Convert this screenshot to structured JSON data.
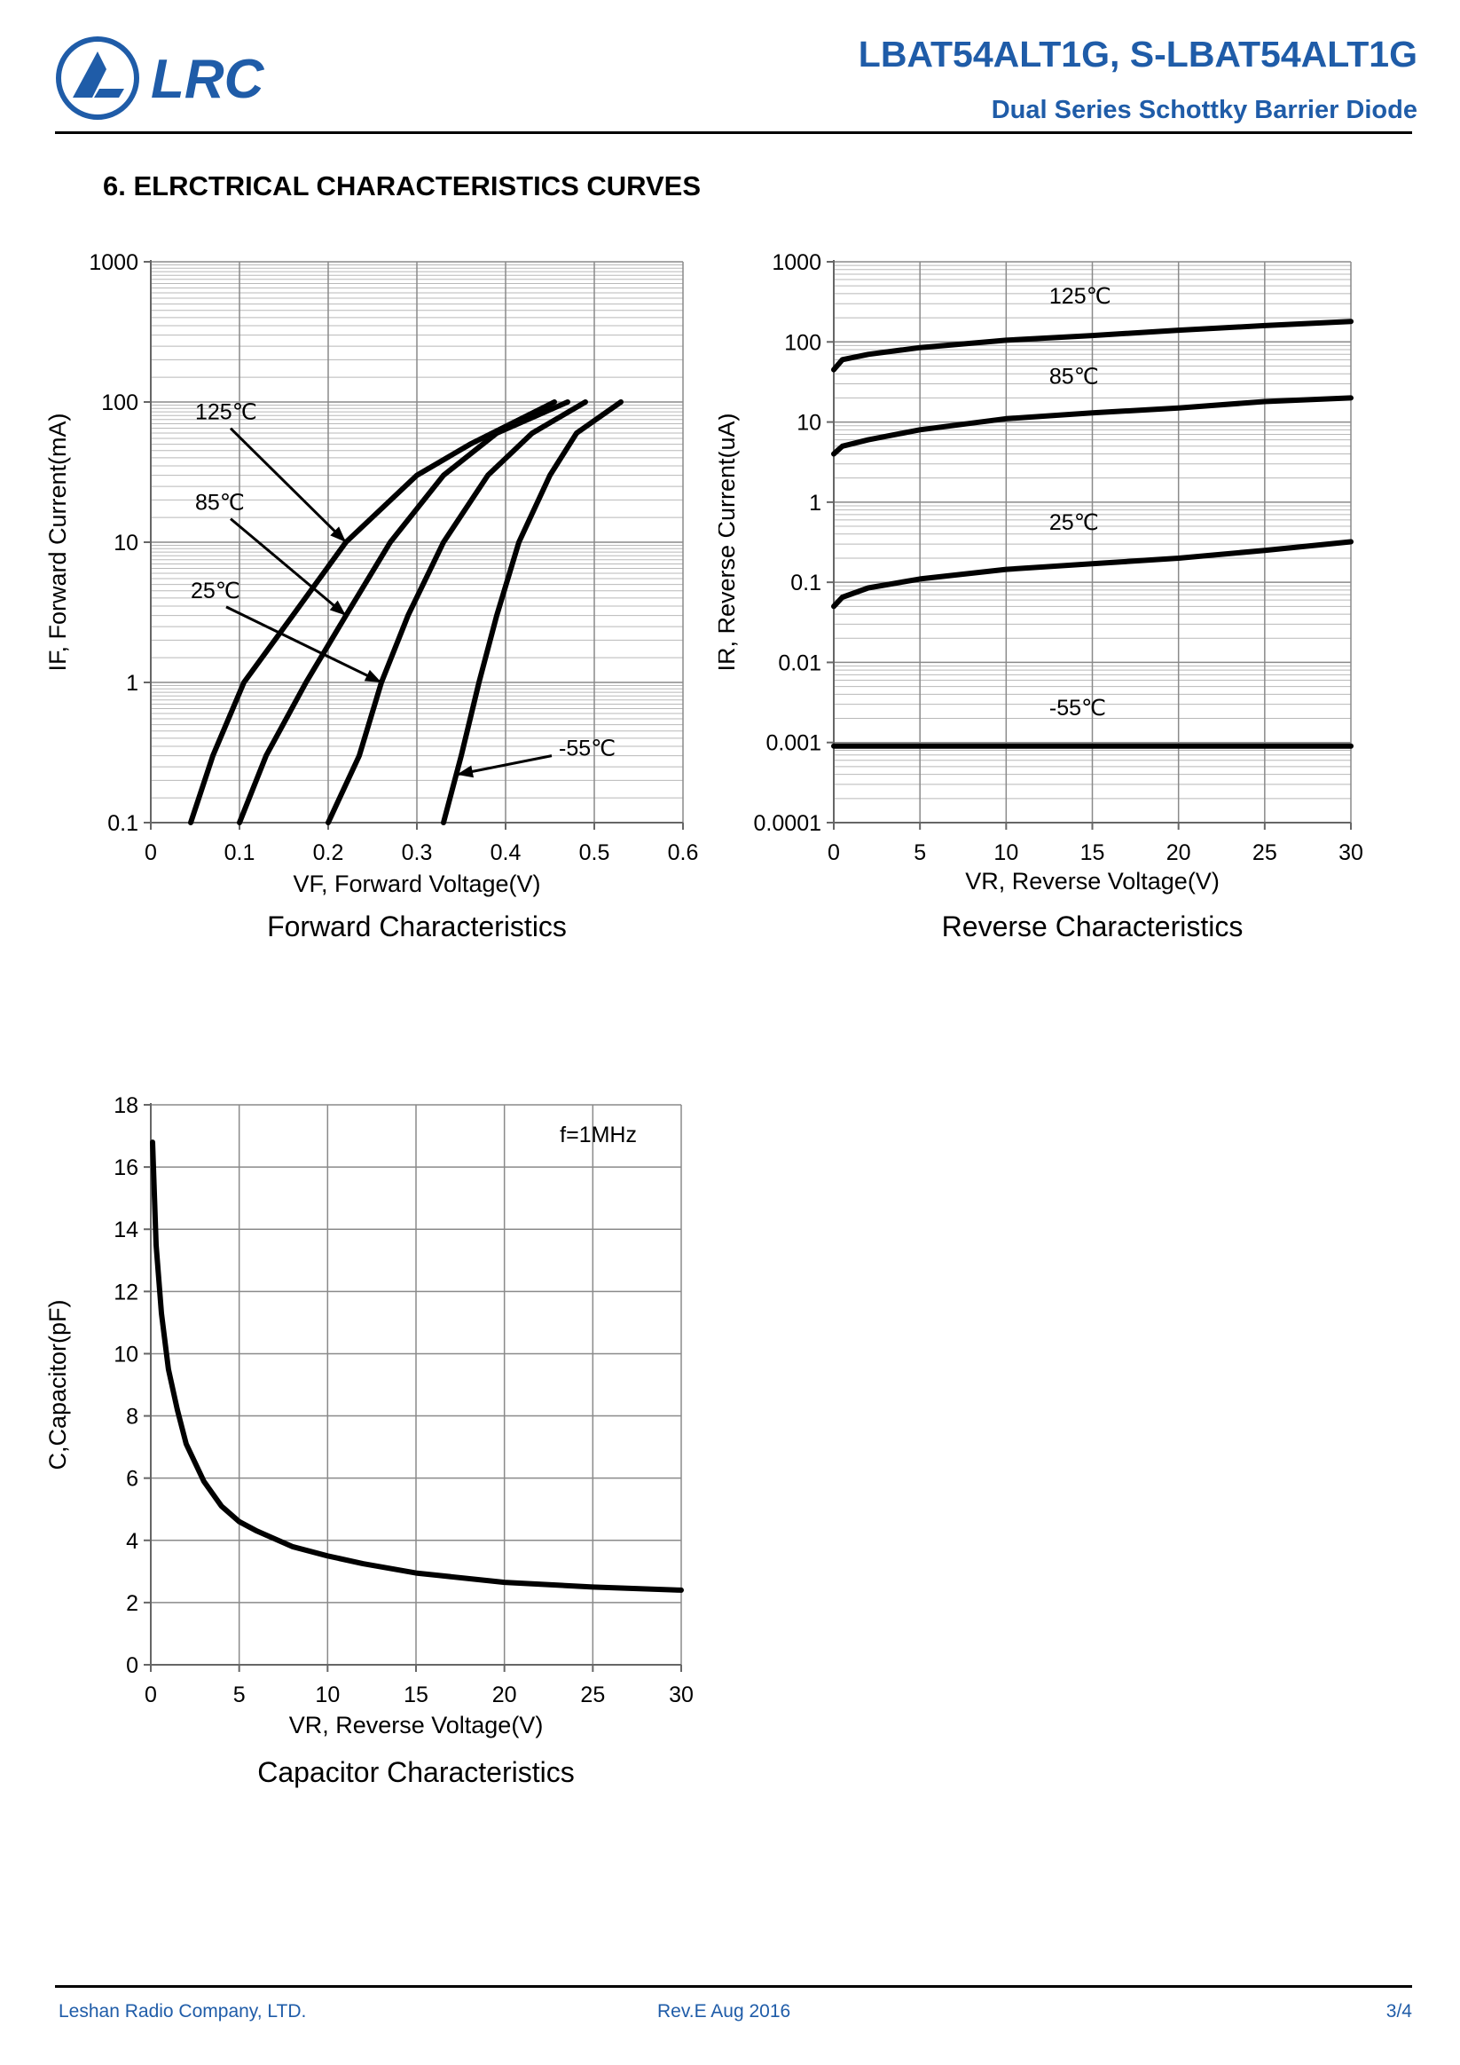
{
  "header": {
    "logo_text": "LRC",
    "title": "LBAT54ALT1G, S-LBAT54ALT1G",
    "subtitle": "Dual Series  Schottky Barrier Diode",
    "brand_color": "#1f5ca8"
  },
  "section": {
    "heading": "6. ELRCTRICAL CHARACTERISTICS CURVES"
  },
  "chart_data": [
    {
      "id": "forward",
      "type": "line",
      "title": "Forward Characteristics",
      "xlabel": "VF, Forward Voltage(V)",
      "ylabel": "IF, Forward Current(mA)",
      "xscale": "linear",
      "yscale": "log",
      "xlim": [
        0,
        0.6
      ],
      "ylim": [
        0.1,
        1000
      ],
      "xticks": [
        0,
        0.1,
        0.2,
        0.3,
        0.4,
        0.5,
        0.6
      ],
      "xtick_labels": [
        "0",
        "0.1",
        "0.2",
        "0.3",
        "0.4",
        "0.5",
        "0.6"
      ],
      "yticks": [
        0.1,
        1,
        10,
        100,
        1000
      ],
      "ytick_labels": [
        "0.1",
        "1",
        "10",
        "100",
        "1000"
      ],
      "grid": true,
      "series": [
        {
          "name": "125℃",
          "points": [
            [
              0.045,
              0.1
            ],
            [
              0.07,
              0.3
            ],
            [
              0.105,
              1
            ],
            [
              0.16,
              3
            ],
            [
              0.22,
              10
            ],
            [
              0.3,
              30
            ],
            [
              0.36,
              50
            ],
            [
              0.455,
              100
            ]
          ]
        },
        {
          "name": "85℃",
          "points": [
            [
              0.1,
              0.1
            ],
            [
              0.13,
              0.3
            ],
            [
              0.175,
              1
            ],
            [
              0.22,
              3
            ],
            [
              0.27,
              10
            ],
            [
              0.33,
              30
            ],
            [
              0.39,
              60
            ],
            [
              0.47,
              100
            ]
          ]
        },
        {
          "name": "25℃",
          "points": [
            [
              0.2,
              0.1
            ],
            [
              0.235,
              0.3
            ],
            [
              0.26,
              1
            ],
            [
              0.29,
              3
            ],
            [
              0.33,
              10
            ],
            [
              0.38,
              30
            ],
            [
              0.43,
              60
            ],
            [
              0.49,
              100
            ]
          ]
        },
        {
          "name": "-55℃",
          "points": [
            [
              0.33,
              0.1
            ],
            [
              0.35,
              0.3
            ],
            [
              0.37,
              1
            ],
            [
              0.39,
              3
            ],
            [
              0.415,
              10
            ],
            [
              0.45,
              30
            ],
            [
              0.48,
              60
            ],
            [
              0.53,
              100
            ]
          ]
        }
      ],
      "annotations": [
        {
          "text": "125℃",
          "label_at": [
            0.05,
            75
          ],
          "arrow_to": [
            0.22,
            10
          ]
        },
        {
          "text": "85℃",
          "label_at": [
            0.05,
            17
          ],
          "arrow_to": [
            0.22,
            3
          ]
        },
        {
          "text": "25℃",
          "label_at": [
            0.045,
            4
          ],
          "arrow_to": [
            0.26,
            1
          ]
        },
        {
          "text": "-55℃",
          "label_at": [
            0.46,
            0.3
          ],
          "arrow_to": [
            0.345,
            0.22
          ]
        }
      ]
    },
    {
      "id": "reverse",
      "type": "line",
      "title": "Reverse Characteristics",
      "xlabel": "VR, Reverse Voltage(V)",
      "ylabel": "IR, Reverse Current(uA)",
      "xscale": "linear",
      "yscale": "log",
      "xlim": [
        0,
        30
      ],
      "ylim": [
        0.0001,
        1000
      ],
      "xticks": [
        0,
        5,
        10,
        15,
        20,
        25,
        30
      ],
      "xtick_labels": [
        "0",
        "5",
        "10",
        "15",
        "20",
        "25",
        "30"
      ],
      "yticks": [
        0.0001,
        0.001,
        0.01,
        0.1,
        1,
        10,
        100,
        1000
      ],
      "ytick_labels": [
        "0.0001",
        "0.001",
        "0.01",
        "0.1",
        "1",
        "10",
        "100",
        "1000"
      ],
      "grid": true,
      "series": [
        {
          "name": "125℃",
          "points": [
            [
              0,
              45
            ],
            [
              0.5,
              60
            ],
            [
              2,
              70
            ],
            [
              5,
              85
            ],
            [
              10,
              105
            ],
            [
              15,
              120
            ],
            [
              20,
              140
            ],
            [
              25,
              160
            ],
            [
              30,
              180
            ]
          ]
        },
        {
          "name": "85℃",
          "points": [
            [
              0,
              4
            ],
            [
              0.5,
              5
            ],
            [
              2,
              6
            ],
            [
              5,
              8
            ],
            [
              10,
              11
            ],
            [
              15,
              13
            ],
            [
              20,
              15
            ],
            [
              25,
              18
            ],
            [
              30,
              20
            ]
          ]
        },
        {
          "name": "25℃",
          "points": [
            [
              0,
              0.05
            ],
            [
              0.5,
              0.065
            ],
            [
              2,
              0.085
            ],
            [
              5,
              0.11
            ],
            [
              10,
              0.145
            ],
            [
              15,
              0.17
            ],
            [
              20,
              0.2
            ],
            [
              25,
              0.25
            ],
            [
              30,
              0.32
            ]
          ]
        },
        {
          "name": "-55℃",
          "points": [
            [
              0,
              0.0009
            ],
            [
              30,
              0.0009
            ]
          ]
        }
      ],
      "annotations": [
        {
          "text": "125℃",
          "label_at": [
            12.5,
            300
          ]
        },
        {
          "text": "85℃",
          "label_at": [
            12.5,
            30
          ]
        },
        {
          "text": "25℃",
          "label_at": [
            12.5,
            0.45
          ]
        },
        {
          "text": "-55℃",
          "label_at": [
            12.5,
            0.0022
          ]
        }
      ]
    },
    {
      "id": "capacitor",
      "type": "line",
      "title": "Capacitor Characteristics",
      "xlabel": "VR, Reverse Voltage(V)",
      "ylabel": "C,Capacitor(pF)",
      "xscale": "linear",
      "yscale": "linear",
      "xlim": [
        0,
        30
      ],
      "ylim": [
        0,
        18
      ],
      "xticks": [
        0,
        5,
        10,
        15,
        20,
        25,
        30
      ],
      "xtick_labels": [
        "0",
        "5",
        "10",
        "15",
        "20",
        "25",
        "30"
      ],
      "yticks": [
        0,
        2,
        4,
        6,
        8,
        10,
        12,
        14,
        16,
        18
      ],
      "ytick_labels": [
        "0",
        "2",
        "4",
        "6",
        "8",
        "10",
        "12",
        "14",
        "16",
        "18"
      ],
      "grid": true,
      "note": "f=1MHz",
      "series": [
        {
          "name": "C",
          "points": [
            [
              0.1,
              16.8
            ],
            [
              0.3,
              13.5
            ],
            [
              0.6,
              11.3
            ],
            [
              1,
              9.5
            ],
            [
              1.5,
              8.2
            ],
            [
              2,
              7.1
            ],
            [
              3,
              5.9
            ],
            [
              4,
              5.1
            ],
            [
              5,
              4.6
            ],
            [
              6,
              4.3
            ],
            [
              8,
              3.8
            ],
            [
              10,
              3.5
            ],
            [
              12,
              3.25
            ],
            [
              15,
              2.95
            ],
            [
              20,
              2.65
            ],
            [
              25,
              2.5
            ],
            [
              30,
              2.4
            ]
          ]
        }
      ]
    }
  ],
  "footer": {
    "company": "Leshan Radio Company, LTD.",
    "revision": "Rev.E   Aug 2016",
    "page": "3/4"
  }
}
